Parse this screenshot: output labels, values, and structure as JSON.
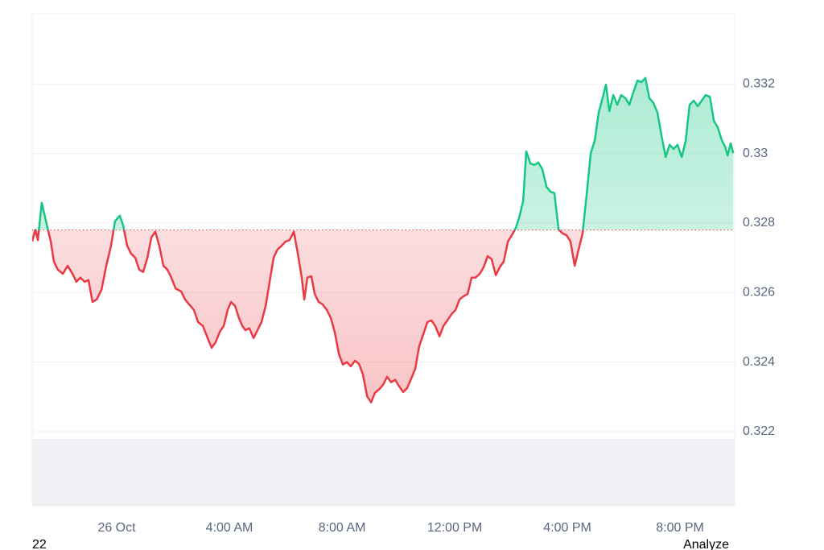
{
  "chart_data": {
    "type": "baseline-line",
    "x": [
      -3.0,
      -2.89,
      -2.8,
      -2.66,
      -2.49,
      -2.34,
      -2.23,
      -2.09,
      -1.91,
      -1.74,
      -1.57,
      -1.43,
      -1.29,
      -1.14,
      -1.0,
      -0.86,
      -0.71,
      -0.54,
      -0.37,
      -0.2,
      -0.06,
      0.11,
      0.23,
      0.37,
      0.51,
      0.66,
      0.8,
      0.94,
      1.09,
      1.23,
      1.37,
      1.51,
      1.66,
      1.8,
      1.94,
      2.09,
      2.29,
      2.43,
      2.57,
      2.74,
      2.89,
      3.06,
      3.23,
      3.37,
      3.51,
      3.66,
      3.8,
      3.94,
      4.06,
      4.2,
      4.34,
      4.46,
      4.57,
      4.71,
      4.86,
      5.0,
      5.14,
      5.29,
      5.43,
      5.57,
      5.71,
      5.86,
      6.0,
      6.14,
      6.29,
      6.43,
      6.57,
      6.66,
      6.77,
      6.91,
      7.03,
      7.17,
      7.31,
      7.46,
      7.6,
      7.74,
      7.89,
      8.03,
      8.17,
      8.31,
      8.46,
      8.6,
      8.74,
      8.89,
      9.03,
      9.17,
      9.31,
      9.46,
      9.6,
      9.74,
      9.89,
      10.03,
      10.17,
      10.31,
      10.46,
      10.6,
      10.74,
      10.89,
      11.03,
      11.17,
      11.31,
      11.46,
      11.6,
      11.74,
      11.89,
      12.03,
      12.17,
      12.31,
      12.46,
      12.6,
      12.74,
      12.89,
      13.03,
      13.17,
      13.31,
      13.46,
      13.6,
      13.74,
      13.89,
      14.03,
      14.17,
      14.29,
      14.43,
      14.54,
      14.69,
      14.83,
      14.97,
      15.11,
      15.26,
      15.4,
      15.54,
      15.69,
      15.83,
      15.97,
      16.11,
      16.26,
      16.4,
      16.54,
      16.69,
      16.83,
      16.97,
      17.11,
      17.26,
      17.37,
      17.49,
      17.63,
      17.77,
      17.91,
      18.06,
      18.2,
      18.34,
      18.49,
      18.63,
      18.77,
      18.91,
      19.06,
      19.2,
      19.34,
      19.49,
      19.63,
      19.77,
      19.91,
      20.06,
      20.2,
      20.34,
      20.49,
      20.63,
      20.77,
      20.91,
      21.06,
      21.2,
      21.34,
      21.49,
      21.6,
      21.69,
      21.8,
      21.89
    ],
    "values": [
      0.32747,
      0.32781,
      0.32751,
      0.32858,
      0.32798,
      0.32747,
      0.32689,
      0.32666,
      0.32654,
      0.32677,
      0.32654,
      0.32631,
      0.32643,
      0.32631,
      0.32636,
      0.32573,
      0.3258,
      0.32608,
      0.32677,
      0.32735,
      0.32805,
      0.32821,
      0.32793,
      0.32735,
      0.32712,
      0.327,
      0.32666,
      0.32659,
      0.327,
      0.32758,
      0.32775,
      0.32735,
      0.32677,
      0.32666,
      0.32643,
      0.32612,
      0.32603,
      0.3258,
      0.32566,
      0.3255,
      0.32515,
      0.32504,
      0.32469,
      0.32441,
      0.32457,
      0.32487,
      0.32504,
      0.3255,
      0.32573,
      0.32562,
      0.32527,
      0.32504,
      0.32492,
      0.32497,
      0.32469,
      0.32492,
      0.32515,
      0.32562,
      0.32631,
      0.327,
      0.32724,
      0.32735,
      0.32747,
      0.32751,
      0.32775,
      0.32712,
      0.32643,
      0.3258,
      0.32643,
      0.32647,
      0.32596,
      0.32573,
      0.32566,
      0.3255,
      0.32527,
      0.32487,
      0.32423,
      0.32393,
      0.324,
      0.32388,
      0.32404,
      0.32395,
      0.32365,
      0.32302,
      0.32284,
      0.32312,
      0.32321,
      0.32335,
      0.32358,
      0.32342,
      0.32349,
      0.3233,
      0.32314,
      0.32325,
      0.32353,
      0.32381,
      0.32446,
      0.32481,
      0.32515,
      0.3252,
      0.32504,
      0.32474,
      0.32504,
      0.3252,
      0.32538,
      0.3255,
      0.3258,
      0.32589,
      0.32596,
      0.32643,
      0.32643,
      0.32654,
      0.32673,
      0.32705,
      0.32696,
      0.3265,
      0.32673,
      0.32689,
      0.32747,
      0.32765,
      0.32786,
      0.32816,
      0.32863,
      0.33006,
      0.32971,
      0.32967,
      0.32974,
      0.32955,
      0.32904,
      0.3289,
      0.32886,
      0.32781,
      0.3277,
      0.32765,
      0.32747,
      0.32677,
      0.32724,
      0.3277,
      0.32886,
      0.33001,
      0.33036,
      0.33117,
      0.33163,
      0.33198,
      0.33122,
      0.33168,
      0.3314,
      0.33168,
      0.33159,
      0.3314,
      0.33175,
      0.3321,
      0.33205,
      0.33217,
      0.33159,
      0.33145,
      0.33117,
      0.33052,
      0.3299,
      0.33025,
      0.33013,
      0.33025,
      0.3299,
      0.33036,
      0.3314,
      0.33152,
      0.33136,
      0.33152,
      0.33168,
      0.33163,
      0.33094,
      0.33075,
      0.33036,
      0.3302,
      0.32994,
      0.33029,
      0.33001
    ],
    "baseline": 0.3278,
    "up_color": "#16c784",
    "down_color": "#ea3943",
    "xlim": [
      -3.0,
      21.94
    ],
    "xticks": [
      {
        "value": 0,
        "label": "26 Oct"
      },
      {
        "value": 4,
        "label": "4:00 AM"
      },
      {
        "value": 8,
        "label": "8:00 AM"
      },
      {
        "value": 12,
        "label": "12:00 PM"
      },
      {
        "value": 16,
        "label": "4:00 PM"
      },
      {
        "value": 20,
        "label": "8:00 PM"
      }
    ],
    "ylim": [
      0.31987,
      0.33402
    ],
    "yticks": [
      0.322,
      0.324,
      0.326,
      0.328,
      0.33,
      0.332
    ],
    "grid": true
  },
  "footer": {
    "left": "22",
    "right": "Analyze"
  }
}
